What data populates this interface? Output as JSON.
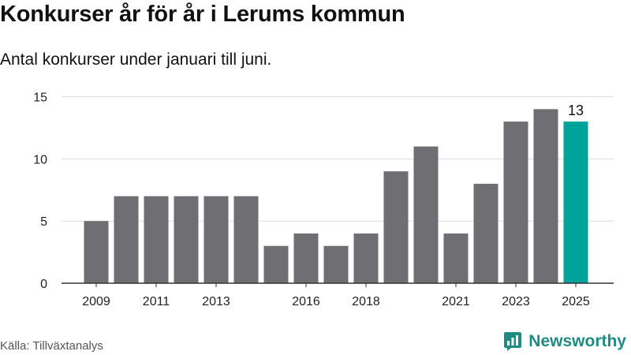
{
  "header": {
    "title": "Konkurser år för år i Lerums kommun",
    "subtitle": "Antal konkurser under januari till juni."
  },
  "footer": {
    "source": "Källa: Tillväxtanalys",
    "brand": "Newsworthy",
    "brand_icon": "newsworthy-logo-icon",
    "brand_color": "#1f8c84"
  },
  "chart_data": {
    "type": "bar",
    "categories": [
      "2009",
      "2010",
      "2011",
      "2012",
      "2013",
      "2014",
      "2015",
      "2016",
      "2017",
      "2018",
      "2019",
      "2020",
      "2021",
      "2022",
      "2023",
      "2024",
      "2025"
    ],
    "values": [
      5,
      7,
      7,
      7,
      7,
      7,
      3,
      4,
      3,
      4,
      9,
      11,
      4,
      8,
      13,
      14,
      13
    ],
    "x_tick_labels": [
      "2009",
      "2011",
      "2013",
      "2016",
      "2018",
      "2021",
      "2023",
      "2025"
    ],
    "y_ticks": [
      0,
      5,
      10,
      15
    ],
    "ylim": [
      0,
      15.8
    ],
    "highlight": {
      "category": "2025",
      "label": "13"
    },
    "colors": {
      "bar": "#6e6e73",
      "highlight": "#00a39a",
      "grid": "#dcdcdc",
      "axis": "#333333"
    },
    "grid": true,
    "legend": "none"
  }
}
